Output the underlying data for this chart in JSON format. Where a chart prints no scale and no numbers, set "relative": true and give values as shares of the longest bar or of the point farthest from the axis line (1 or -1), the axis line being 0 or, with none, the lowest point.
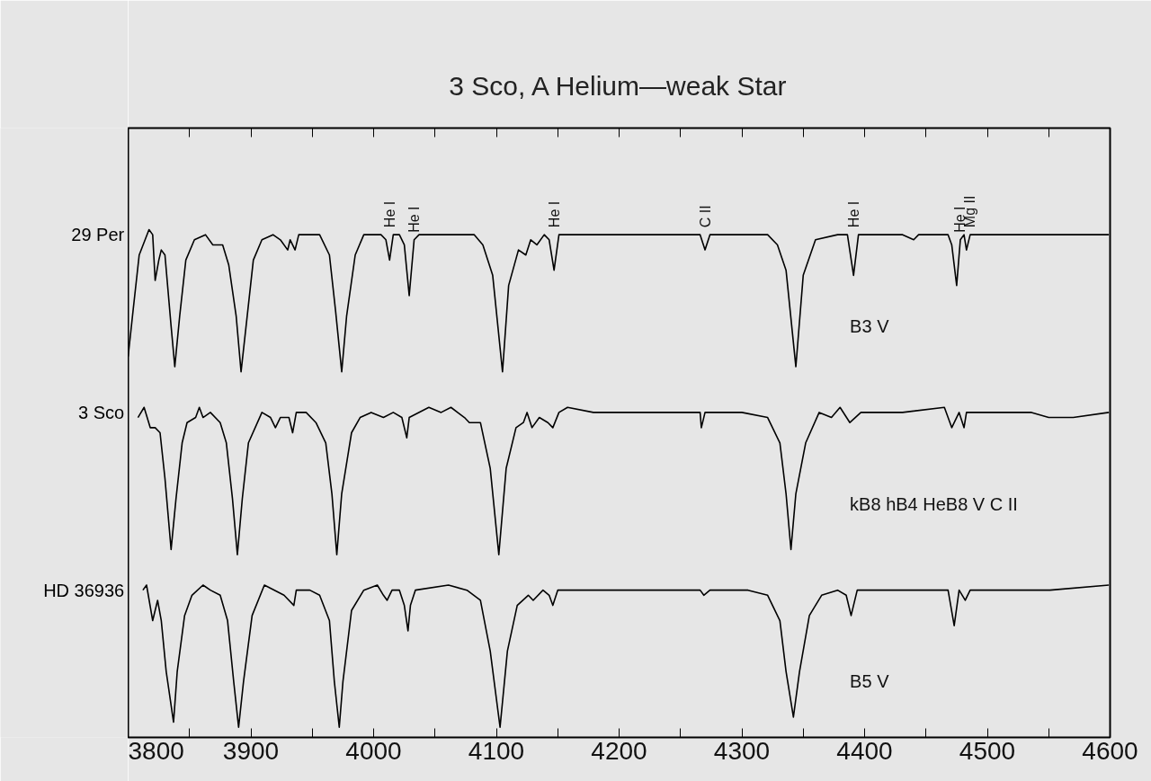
{
  "chart_data": {
    "type": "line",
    "relative": true,
    "title": "3 Sco, A Helium—weak Star",
    "grid": false,
    "xlim": [
      3800,
      4600
    ],
    "xticks": [
      3800,
      {
        "value": 3850,
        "label": null
      },
      3900,
      {
        "value": 3950,
        "label": null
      },
      4000,
      {
        "value": 4050,
        "label": null
      },
      4100,
      {
        "value": 4150,
        "label": null
      },
      4200,
      {
        "value": 4250,
        "label": null
      },
      4300,
      {
        "value": 4350,
        "label": null
      },
      4400,
      {
        "value": 4450,
        "label": null
      },
      4500,
      {
        "value": 4550,
        "label": null
      },
      4600
    ],
    "series": [
      {
        "name": "29 Per",
        "color": "#000000",
        "x": [
          3800,
          3804,
          3809,
          3817,
          3820,
          3822,
          3825,
          3827,
          3830,
          3835,
          3838,
          3842,
          3847,
          3854,
          3863,
          3869,
          3877,
          3882,
          3888,
          3892,
          3897,
          3902,
          3909,
          3918,
          3924,
          3930,
          3932,
          3936,
          3939,
          3948,
          3956,
          3964,
          3969,
          3974,
          3978,
          3985,
          3992,
          4006,
          4010,
          4013,
          4016,
          4021,
          4025,
          4029,
          4033,
          4037,
          4061,
          4082,
          4089,
          4097,
          4105,
          4110,
          4118,
          4124,
          4128,
          4133,
          4139,
          4143,
          4147,
          4151,
          4165,
          4179,
          4210,
          4247,
          4266,
          4270,
          4274,
          4321,
          4329,
          4336,
          4344,
          4350,
          4360,
          4378,
          4386,
          4391,
          4395,
          4431,
          4440,
          4444,
          4468,
          4471,
          4475,
          4478,
          4481,
          4483,
          4486,
          4536,
          4599
        ],
        "values": [
          0.75,
          0.84,
          0.95,
          1.0,
          0.99,
          0.9,
          0.94,
          0.96,
          0.95,
          0.81,
          0.73,
          0.83,
          0.94,
          0.98,
          0.99,
          0.97,
          0.97,
          0.93,
          0.83,
          0.72,
          0.83,
          0.94,
          0.98,
          0.99,
          0.98,
          0.96,
          0.98,
          0.96,
          0.99,
          0.99,
          0.99,
          0.95,
          0.84,
          0.72,
          0.83,
          0.95,
          0.99,
          0.99,
          0.98,
          0.94,
          0.99,
          0.99,
          0.97,
          0.87,
          0.98,
          0.99,
          0.99,
          0.99,
          0.97,
          0.91,
          0.72,
          0.89,
          0.96,
          0.95,
          0.98,
          0.97,
          0.99,
          0.98,
          0.92,
          0.99,
          0.99,
          0.99,
          0.99,
          0.99,
          0.99,
          0.96,
          0.99,
          0.99,
          0.97,
          0.92,
          0.73,
          0.91,
          0.98,
          0.99,
          0.99,
          0.91,
          0.99,
          0.99,
          0.98,
          0.99,
          0.99,
          0.97,
          0.89,
          0.98,
          0.99,
          0.96,
          0.99,
          0.99,
          0.99
        ]
      },
      {
        "name": "3 Sco",
        "color": "#000000",
        "x": [
          3808,
          3813,
          3818,
          3822,
          3826,
          3830,
          3835,
          3839,
          3844,
          3848,
          3855,
          3858,
          3861,
          3867,
          3875,
          3880,
          3885,
          3889,
          3893,
          3898,
          3909,
          3916,
          3920,
          3924,
          3931,
          3934,
          3937,
          3945,
          3953,
          3961,
          3966,
          3970,
          3974,
          3982,
          3989,
          3998,
          4008,
          4016,
          4023,
          4027,
          4029,
          4045,
          4055,
          4063,
          4074,
          4078,
          4087,
          4095,
          4102,
          4108,
          4116,
          4122,
          4125,
          4129,
          4135,
          4142,
          4146,
          4151,
          4158,
          4179,
          4210,
          4221,
          4266,
          4267,
          4270,
          4300,
          4321,
          4331,
          4336,
          4340,
          4344,
          4352,
          4363,
          4373,
          4380,
          4388,
          4397,
          4431,
          4465,
          4471,
          4477,
          4481,
          4483,
          4536,
          4550,
          4570,
          4599
        ],
        "values": [
          0.63,
          0.65,
          0.61,
          0.61,
          0.6,
          0.51,
          0.37,
          0.47,
          0.58,
          0.62,
          0.63,
          0.65,
          0.63,
          0.64,
          0.62,
          0.58,
          0.47,
          0.36,
          0.47,
          0.58,
          0.64,
          0.63,
          0.61,
          0.63,
          0.63,
          0.6,
          0.64,
          0.64,
          0.62,
          0.58,
          0.48,
          0.36,
          0.48,
          0.6,
          0.63,
          0.64,
          0.63,
          0.64,
          0.63,
          0.59,
          0.63,
          0.65,
          0.64,
          0.65,
          0.63,
          0.62,
          0.62,
          0.53,
          0.36,
          0.53,
          0.61,
          0.62,
          0.64,
          0.61,
          0.63,
          0.62,
          0.61,
          0.64,
          0.65,
          0.64,
          0.64,
          0.64,
          0.64,
          0.61,
          0.64,
          0.64,
          0.63,
          0.58,
          0.48,
          0.37,
          0.48,
          0.58,
          0.64,
          0.63,
          0.65,
          0.62,
          0.64,
          0.64,
          0.65,
          0.61,
          0.64,
          0.61,
          0.64,
          0.64,
          0.63,
          0.63,
          0.64
        ]
      },
      {
        "name": "HD 36936",
        "color": "#000000",
        "x": [
          3812,
          3815,
          3820,
          3824,
          3827,
          3831,
          3837,
          3840,
          3846,
          3852,
          3861,
          3867,
          3875,
          3881,
          3886,
          3890,
          3894,
          3901,
          3911,
          3927,
          3935,
          3937,
          3948,
          3956,
          3964,
          3968,
          3972,
          3975,
          3982,
          3992,
          4003,
          4008,
          4011,
          4015,
          4021,
          4025,
          4028,
          4030,
          4034,
          4061,
          4076,
          4087,
          4095,
          4103,
          4109,
          4117,
          4126,
          4130,
          4138,
          4143,
          4146,
          4150,
          4171,
          4210,
          4234,
          4266,
          4269,
          4274,
          4305,
          4321,
          4331,
          4336,
          4342,
          4347,
          4355,
          4365,
          4378,
          4385,
          4389,
          4394,
          4431,
          4439,
          4468,
          4473,
          4477,
          4482,
          4486,
          4551,
          4599
        ],
        "values": [
          0.29,
          0.3,
          0.23,
          0.27,
          0.23,
          0.13,
          0.03,
          0.13,
          0.24,
          0.28,
          0.3,
          0.29,
          0.28,
          0.23,
          0.11,
          0.02,
          0.11,
          0.24,
          0.3,
          0.28,
          0.26,
          0.29,
          0.29,
          0.28,
          0.23,
          0.11,
          0.02,
          0.11,
          0.25,
          0.29,
          0.3,
          0.28,
          0.27,
          0.29,
          0.29,
          0.26,
          0.21,
          0.26,
          0.29,
          0.3,
          0.29,
          0.27,
          0.17,
          0.02,
          0.17,
          0.26,
          0.28,
          0.27,
          0.29,
          0.28,
          0.26,
          0.29,
          0.29,
          0.29,
          0.29,
          0.29,
          0.28,
          0.29,
          0.29,
          0.28,
          0.23,
          0.13,
          0.04,
          0.13,
          0.24,
          0.28,
          0.29,
          0.28,
          0.24,
          0.29,
          0.29,
          0.29,
          0.29,
          0.22,
          0.29,
          0.27,
          0.29,
          0.29,
          0.3
        ]
      }
    ],
    "annotations": [
      "B3 V",
      "kB8 hB4 HeB8 V C II",
      "B5 V",
      {
        "text": "He I",
        "x": 4013,
        "y": 0.99
      },
      {
        "text": "He I",
        "x": 4033,
        "y": 0.98
      },
      {
        "text": "He I",
        "x": 4147,
        "y": 0.99
      },
      {
        "text": "C II",
        "x": 4270,
        "y": 0.99
      },
      {
        "text": "He I",
        "x": 4391,
        "y": 0.99
      },
      {
        "text": "He I",
        "x": 4478,
        "y": 0.98
      },
      {
        "text": "Mg II",
        "x": 4486,
        "y": 0.99
      }
    ]
  }
}
